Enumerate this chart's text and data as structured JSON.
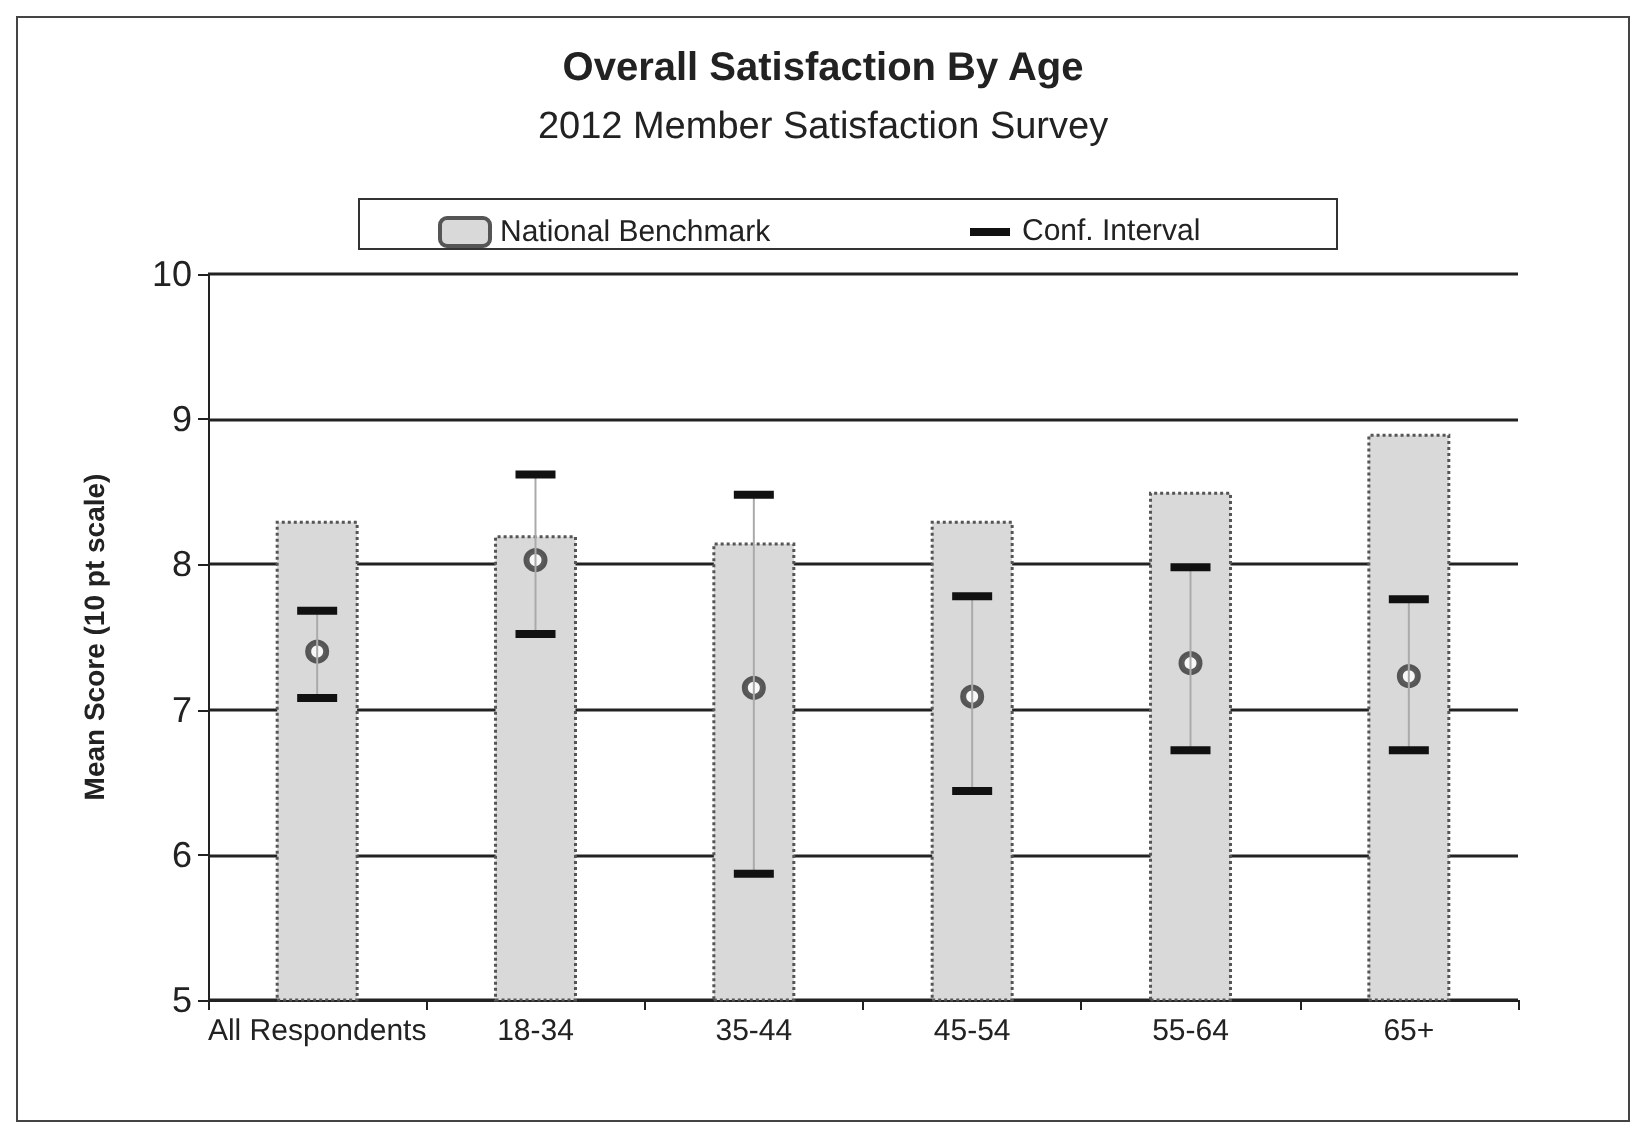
{
  "chart_data": {
    "type": "bar",
    "title": "Overall Satisfaction By Age",
    "subtitle": "2012 Member Satisfaction Survey",
    "ylabel": "Mean Score (10 pt scale)",
    "categories": [
      "All Respondents",
      "18-34",
      "35-44",
      "45-54",
      "55-64",
      "65+"
    ],
    "series": [
      {
        "name": "National Benchmark",
        "type": "bar",
        "color": "#d9d9d9",
        "values": [
          8.3,
          8.2,
          8.15,
          8.3,
          8.5,
          8.9
        ]
      },
      {
        "type": "scatter",
        "color": "#333333",
        "marker": "circle",
        "values": [
          7.4,
          8.03,
          7.15,
          7.09,
          7.32,
          7.23
        ],
        "errors": [
          [
            7.08,
            7.68
          ],
          [
            7.52,
            8.62
          ],
          [
            5.87,
            8.48
          ],
          [
            6.44,
            7.78
          ],
          [
            6.72,
            7.98
          ],
          [
            6.72,
            7.76
          ]
        ]
      }
    ],
    "annotations": [
      "Conf. Interval"
    ],
    "ylim": [
      5,
      10
    ],
    "yticks": [
      5,
      6,
      7,
      8,
      9,
      10
    ],
    "grid": "y",
    "legend": "top"
  }
}
